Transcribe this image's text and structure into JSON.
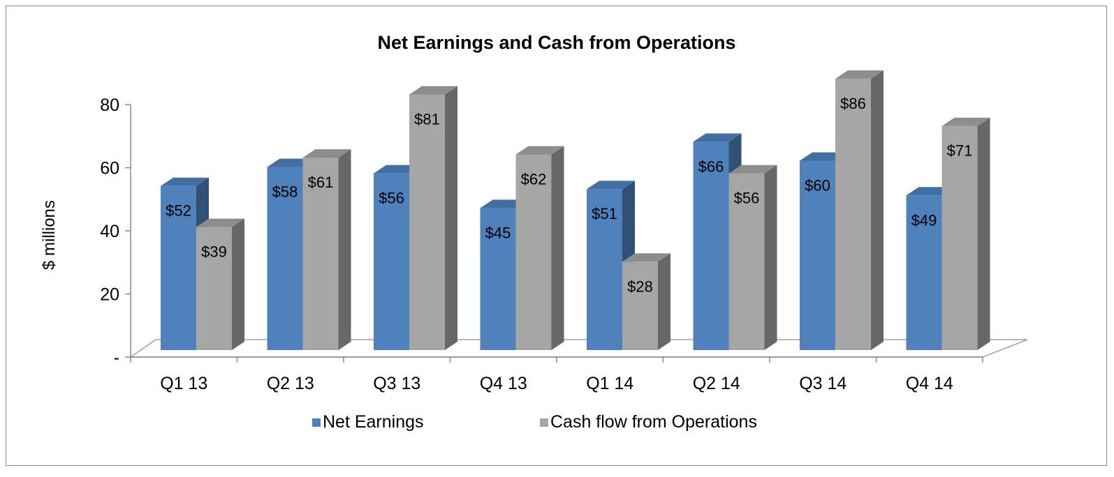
{
  "chart_data": {
    "type": "bar",
    "title": "Net Earnings and Cash from Operations",
    "ylabel": "$ millions",
    "xlabel": "",
    "ylim": [
      0,
      80
    ],
    "yticks": [
      0,
      20,
      40,
      60,
      80
    ],
    "ytick_labels": [
      "-",
      "20",
      "40",
      "60",
      "80"
    ],
    "categories": [
      "Q1 13",
      "Q2 13",
      "Q3 13",
      "Q4 13",
      "Q1 14",
      "Q2 14",
      "Q3 14",
      "Q4 14"
    ],
    "series": [
      {
        "name": "Net Earnings",
        "values": [
          52,
          58,
          56,
          45,
          51,
          66,
          60,
          49
        ],
        "labels": [
          "$52",
          "$58",
          "$56",
          "$45",
          "$51",
          "$66",
          "$60",
          "$49"
        ],
        "color": "#4f81bd"
      },
      {
        "name": "Cash flow from Operations",
        "values": [
          39,
          61,
          81,
          62,
          28,
          56,
          86,
          71
        ],
        "labels": [
          "$39",
          "$61",
          "$81",
          "$62",
          "$28",
          "$56",
          "$86",
          "$71"
        ],
        "color": "#a6a6a6"
      }
    ],
    "legend_position": "bottom",
    "style": "3d-clustered-column",
    "grid": false
  }
}
